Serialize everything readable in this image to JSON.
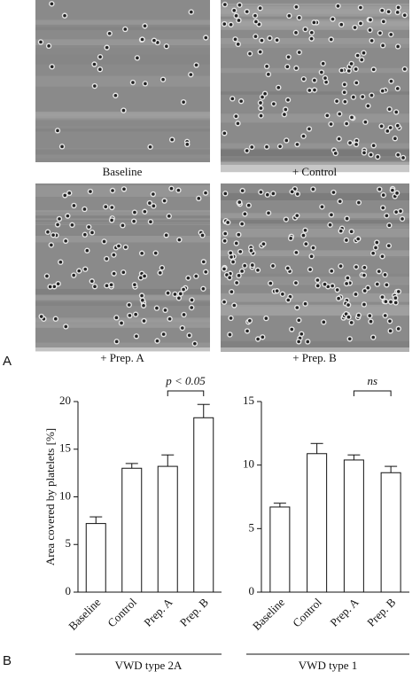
{
  "panel_a": {
    "label": "A",
    "captions": [
      "Baseline",
      "+ Control",
      "+ Prep. A",
      "+ Prep. B"
    ]
  },
  "panel_b": {
    "label": "B"
  },
  "chart_data": [
    {
      "type": "bar",
      "y_label": "Area covered by platelets [%]",
      "group_label": "VWD type 2A",
      "categories": [
        "Baseline",
        "Control",
        "Prep. A",
        "Prep. B"
      ],
      "values": [
        7.2,
        13.0,
        13.2,
        18.3
      ],
      "errors": [
        0.7,
        0.5,
        1.2,
        1.4
      ],
      "color": "#ffffff",
      "ylim": [
        0,
        20
      ],
      "yticks": [
        0,
        5,
        10,
        15,
        20
      ],
      "annotation": {
        "text": "p < 0.05",
        "from": 2,
        "to": 3
      }
    },
    {
      "type": "bar",
      "group_label": "VWD type 1",
      "categories": [
        "Baseline",
        "Control",
        "Prep. A",
        "Prep. B"
      ],
      "values": [
        6.7,
        10.9,
        10.4,
        9.4
      ],
      "errors": [
        0.3,
        0.8,
        0.4,
        0.5
      ],
      "color": "#ffffff",
      "ylim": [
        0,
        15
      ],
      "yticks": [
        0,
        5,
        10,
        15
      ],
      "annotation": {
        "text": "ns",
        "from": 2,
        "to": 3
      }
    }
  ]
}
